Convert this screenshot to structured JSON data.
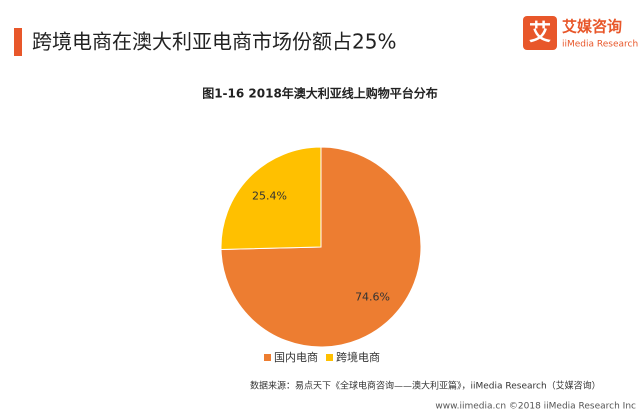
{
  "header": {
    "title": "跨境电商在澳大利亚电商市场份额占25%"
  },
  "logo": {
    "icon": "艾",
    "name": "艾媒咨询",
    "sub": "iiMedia Research"
  },
  "chart_data": {
    "type": "pie",
    "title": "图1-16  2018年澳大利亚线上购物平台分布",
    "categories": [
      "国内电商",
      "跨境电商"
    ],
    "values": [
      74.6,
      25.4
    ],
    "value_labels": [
      "74.6%",
      "25.4%"
    ],
    "colors": [
      "#ed7d31",
      "#ffc000"
    ],
    "legend": "bottom"
  },
  "source": "数据来源：易点天下《全球电商咨询——澳大利亚篇》，iiMedia Research（艾媒咨询）",
  "footer": "www.iimedia.cn   ©2018  iiMedia Research  Inc"
}
